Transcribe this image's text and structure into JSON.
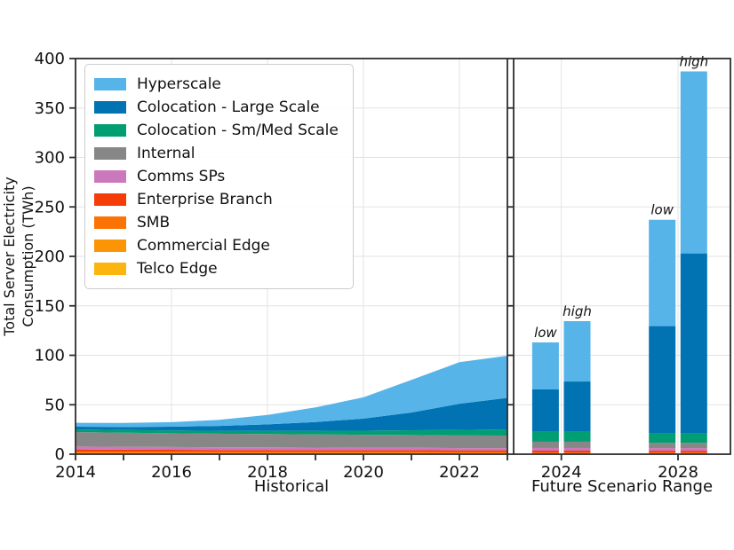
{
  "figure": {
    "background": "#ffffff",
    "grid_color": "#e3e3e3",
    "spine_color": "#2e2e2e",
    "text_color": "#111111"
  },
  "legend": {
    "items": [
      {
        "label": "Hyperscale",
        "color": "#56b4e9"
      },
      {
        "label": "Colocation - Large Scale",
        "color": "#0173b2"
      },
      {
        "label": "Colocation - Sm/Med Scale",
        "color": "#029e73"
      },
      {
        "label": "Internal",
        "color": "#878787"
      },
      {
        "label": "Comms SPs",
        "color": "#cc78bc"
      },
      {
        "label": "Enterprise Branch",
        "color": "#f53d0a"
      },
      {
        "label": "SMB",
        "color": "#fb7205"
      },
      {
        "label": "Commercial Edge",
        "color": "#fb9505"
      },
      {
        "label": "Telco Edge",
        "color": "#fcb40e"
      }
    ]
  },
  "chart_data": [
    {
      "type": "area",
      "panel": "historical",
      "xlabel": "Historical",
      "ylabel": "Total Server Electricity Consumption (TWh)",
      "ylabel_lines": [
        "Total Server Electricity",
        "Consumption (TWh)"
      ],
      "ylim": [
        0,
        400
      ],
      "yticks": [
        0,
        50,
        100,
        150,
        200,
        250,
        300,
        350,
        400
      ],
      "x": [
        2014,
        2015,
        2016,
        2017,
        2018,
        2019,
        2020,
        2021,
        2022,
        2023
      ],
      "x_tick_labels": [
        2014,
        2016,
        2018,
        2020,
        2022
      ],
      "grid": true,
      "series_bottom_to_top": [
        {
          "name": "Telco Edge",
          "color": "#fcb40e",
          "values": [
            0.6,
            0.6,
            0.6,
            0.6,
            0.6,
            0.7,
            0.7,
            0.7,
            0.7,
            0.7
          ]
        },
        {
          "name": "Commercial Edge",
          "color": "#fb9505",
          "values": [
            0.8,
            0.8,
            0.8,
            0.8,
            0.8,
            0.7,
            0.7,
            0.7,
            0.6,
            0.6
          ]
        },
        {
          "name": "SMB",
          "color": "#fb7205",
          "values": [
            1.2,
            1.1,
            1.1,
            1.0,
            1.0,
            1.0,
            0.9,
            0.9,
            0.9,
            0.9
          ]
        },
        {
          "name": "Enterprise Branch",
          "color": "#f53d0a",
          "values": [
            2.2,
            2.1,
            2.0,
            1.9,
            1.9,
            1.8,
            1.8,
            1.8,
            1.7,
            1.7
          ]
        },
        {
          "name": "Comms SPs",
          "color": "#cc78bc",
          "values": [
            3.0,
            2.9,
            2.8,
            2.7,
            2.6,
            2.5,
            2.4,
            2.4,
            2.3,
            2.3
          ]
        },
        {
          "name": "Internal",
          "color": "#878787",
          "values": [
            14.6,
            14.2,
            13.9,
            13.7,
            13.5,
            13.3,
            13.1,
            12.9,
            12.7,
            12.6
          ]
        },
        {
          "name": "Colocation - Sm/Med Scale",
          "color": "#029e73",
          "values": [
            2.7,
            2.7,
            2.8,
            3.0,
            3.3,
            3.7,
            4.2,
            4.8,
            5.6,
            6.3
          ]
        },
        {
          "name": "Colocation - Large Scale",
          "color": "#0173b2",
          "values": [
            2.7,
            3.1,
            3.8,
            4.9,
            6.5,
            8.8,
            12.2,
            18.0,
            26.5,
            31.9
          ]
        },
        {
          "name": "Hyperscale",
          "color": "#56b4e9",
          "values": [
            3.9,
            4.1,
            4.6,
            6.2,
            9.5,
            14.8,
            21.5,
            32.9,
            42.0,
            42.5
          ]
        }
      ]
    },
    {
      "type": "bar",
      "panel": "future",
      "xlabel": "Future Scenario Range",
      "ylim": [
        0,
        400
      ],
      "grid": true,
      "groups": [
        {
          "category": "2024",
          "bars": [
            {
              "label": "low",
              "total": 113.0
            },
            {
              "label": "high",
              "total": 134.5
            }
          ]
        },
        {
          "category": "2028",
          "bars": [
            {
              "label": "low",
              "total": 237.0
            },
            {
              "label": "high",
              "total": 387.0
            }
          ]
        }
      ],
      "series_bottom_to_top": [
        {
          "name": "Telco Edge",
          "color": "#fcb40e",
          "values": [
            0.4,
            0.4,
            0.4,
            0.4
          ]
        },
        {
          "name": "Commercial Edge",
          "color": "#fb9505",
          "values": [
            0.5,
            0.5,
            0.5,
            0.5
          ]
        },
        {
          "name": "SMB",
          "color": "#fb7205",
          "values": [
            0.7,
            0.7,
            0.7,
            0.7
          ]
        },
        {
          "name": "Enterprise Branch",
          "color": "#f53d0a",
          "values": [
            2.0,
            2.0,
            1.9,
            1.9
          ]
        },
        {
          "name": "Comms SPs",
          "color": "#cc78bc",
          "values": [
            2.7,
            2.7,
            2.7,
            2.7
          ]
        },
        {
          "name": "Internal",
          "color": "#878787",
          "values": [
            6.3,
            6.3,
            5.4,
            5.4
          ]
        },
        {
          "name": "Colocation - Sm/Med Scale",
          "color": "#029e73",
          "values": [
            10.7,
            10.7,
            9.9,
            9.9
          ]
        },
        {
          "name": "Colocation - Large Scale",
          "color": "#0173b2",
          "values": [
            42.2,
            50.2,
            108.0,
            181.5
          ]
        },
        {
          "name": "Hyperscale",
          "color": "#56b4e9",
          "values": [
            47.5,
            61.0,
            107.5,
            184.0
          ]
        }
      ],
      "bar_value_order": [
        "2024 low",
        "2024 high",
        "2028 low",
        "2028 high"
      ]
    }
  ]
}
